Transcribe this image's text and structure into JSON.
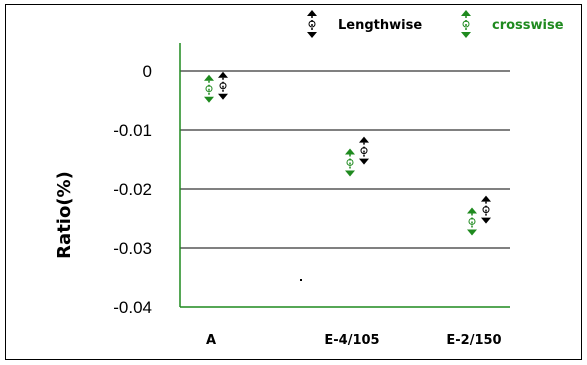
{
  "chart_data": {
    "type": "scatter",
    "categories": [
      "A",
      "E-4/105",
      "E-2/150"
    ],
    "ylabel": "Ratio(%)",
    "xlabel": "",
    "ylim": [
      -0.04,
      0.0
    ],
    "yticks": [
      "0",
      "-0.01",
      "-0.02",
      "-0.03",
      "-0.04"
    ],
    "ytick_values": [
      0,
      -0.01,
      -0.02,
      -0.03,
      -0.04
    ],
    "grid": "horizontal",
    "legend_position": "top-right",
    "series": [
      {
        "name": "Lengthwise",
        "color": "#000000",
        "marker": "double-arrow",
        "values": [
          -0.0025,
          -0.0135,
          -0.0235
        ]
      },
      {
        "name": "crosswise",
        "color": "#1f8a1f",
        "marker": "double-arrow",
        "values": [
          -0.003,
          -0.0155,
          -0.0255
        ]
      }
    ]
  }
}
